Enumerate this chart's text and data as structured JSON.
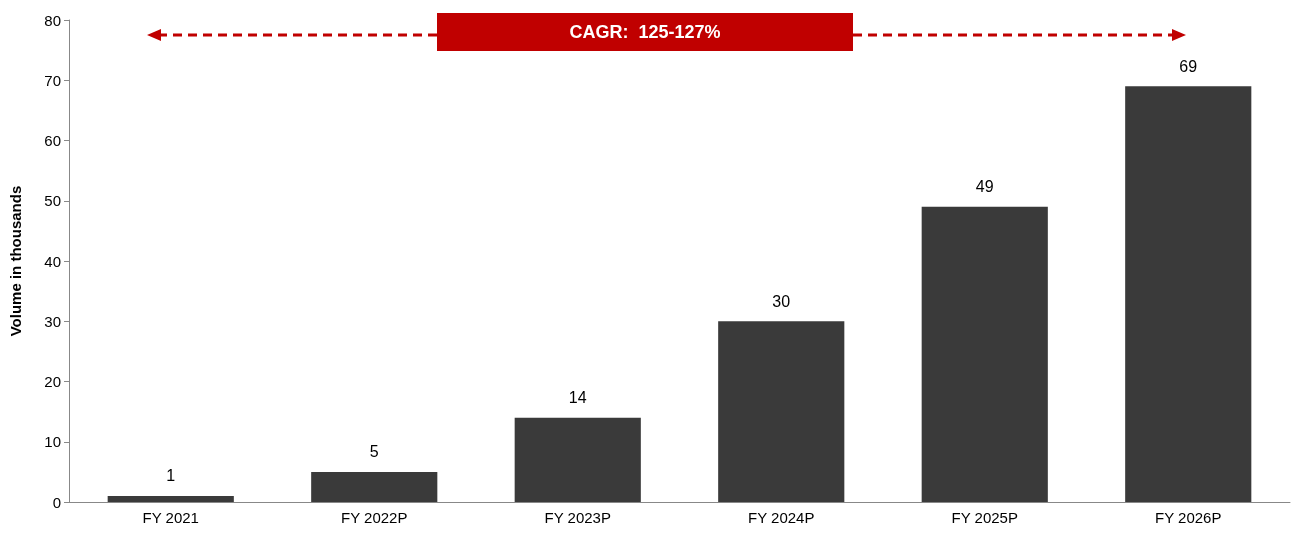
{
  "chart_data": {
    "type": "bar",
    "ylabel": "Volume in thousands",
    "categories": [
      "FY 2021",
      "FY 2022P",
      "FY 2023P",
      "FY 2024P",
      "FY 2025P",
      "FY 2026P"
    ],
    "values": [
      1,
      5,
      14,
      30,
      49,
      69
    ],
    "color": "#3a3a3a",
    "ylim": [
      0,
      80
    ],
    "yticks": [
      0,
      10,
      20,
      30,
      40,
      50,
      60,
      70,
      80
    ],
    "grid": false,
    "data_labels": true,
    "annotations": [
      "CAGR:  125-127%"
    ]
  }
}
